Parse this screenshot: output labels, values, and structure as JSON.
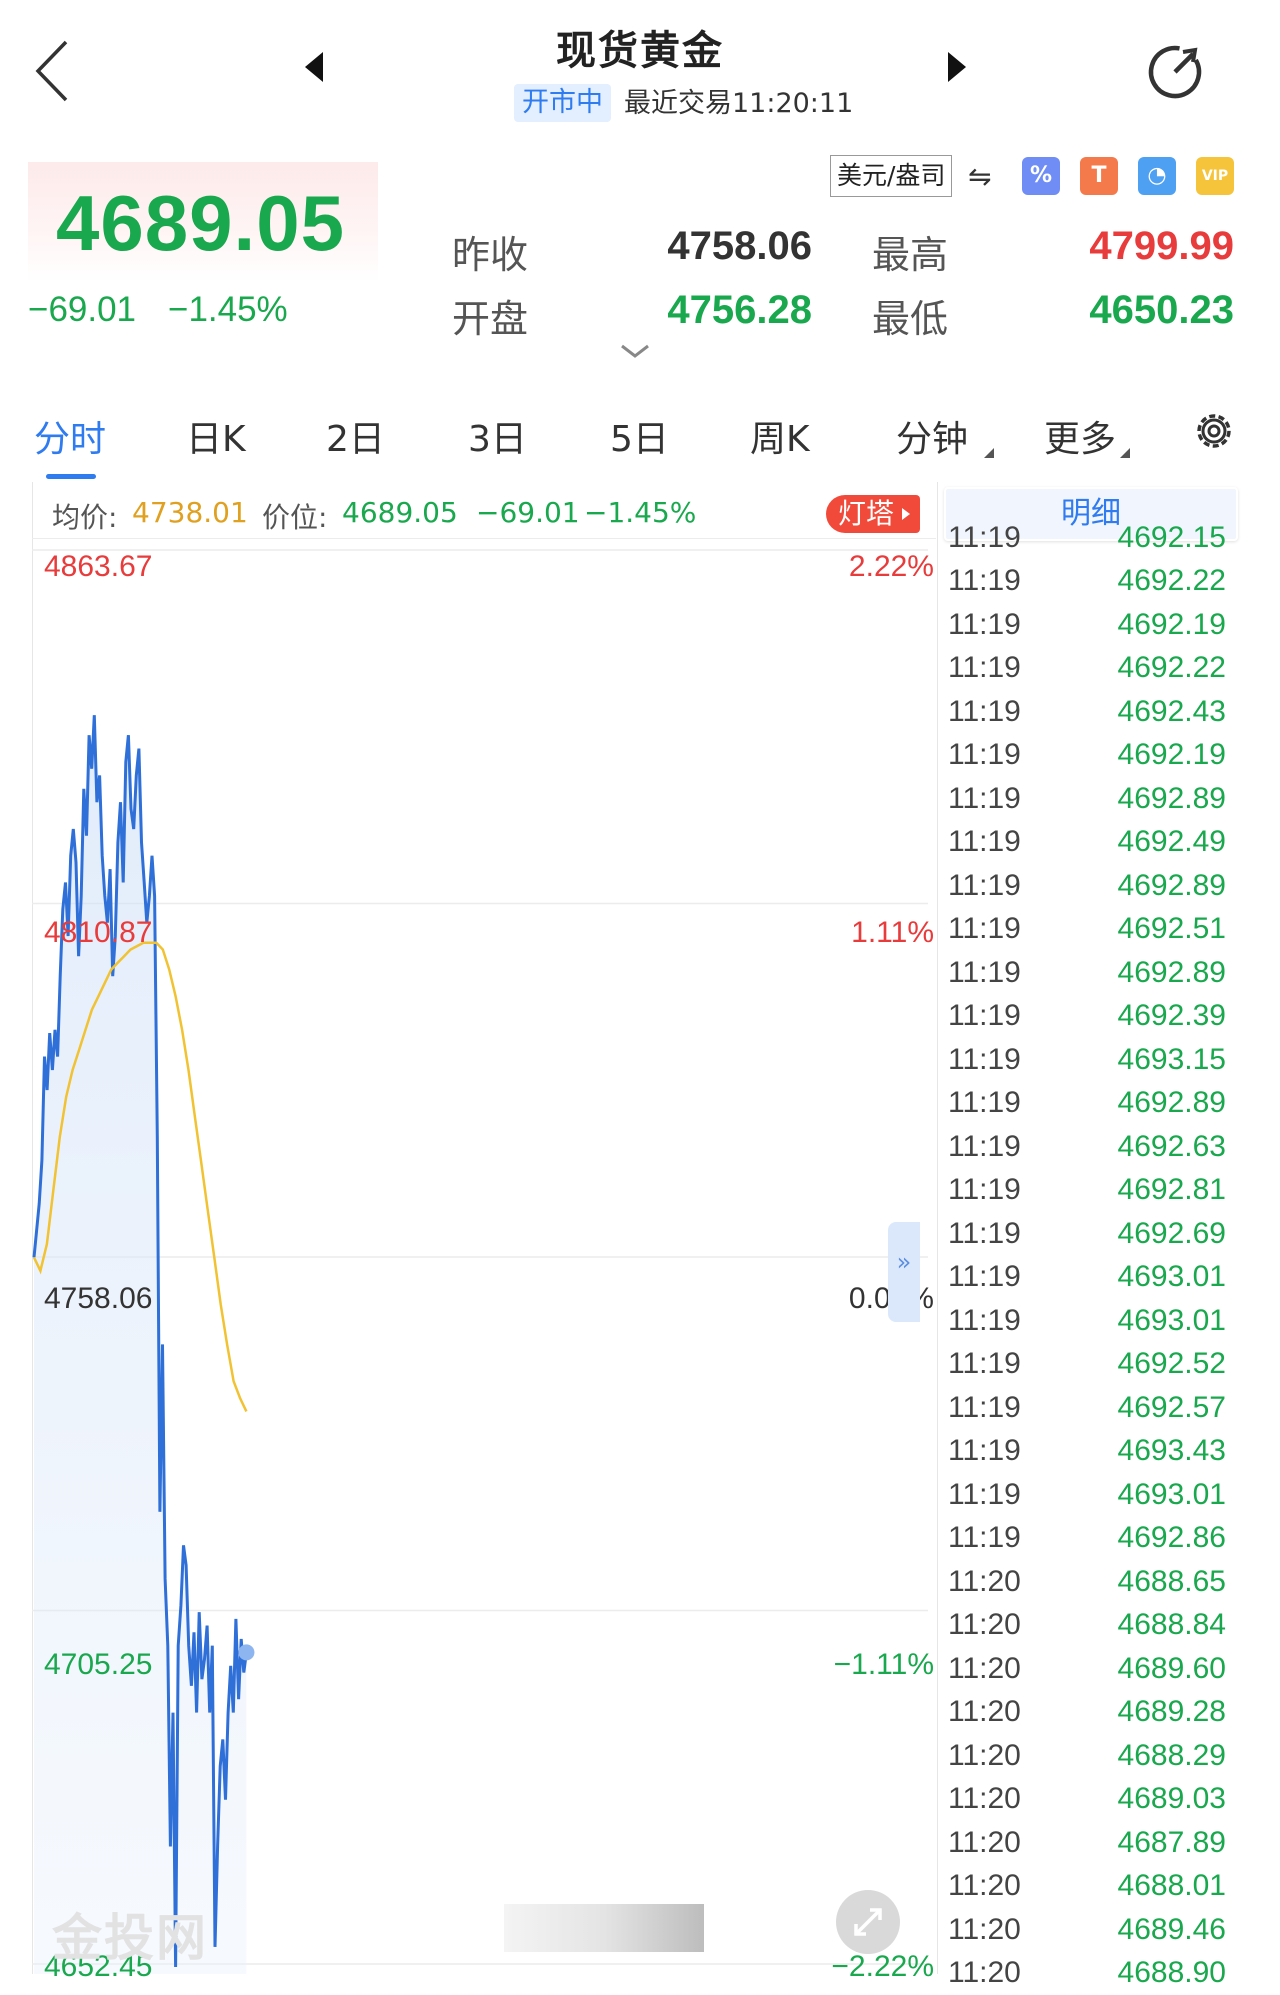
{
  "header": {
    "title": "现货黄金",
    "status": "开市中",
    "last_trade": "最近交易11:20:11"
  },
  "quote": {
    "price": "4689.05",
    "change_abs": "−69.01",
    "change_pct": "−1.45%",
    "prev_close_label": "昨收",
    "prev_close": "4758.06",
    "open_label": "开盘",
    "open": "4756.28",
    "high_label": "最高",
    "high": "4799.99",
    "low_label": "最低",
    "low": "4650.23",
    "currency": "美元/盎司",
    "colors": {
      "up": "#e83b3b",
      "down": "#1aa84e",
      "accent": "#2f7bf0"
    }
  },
  "tabs": [
    {
      "label": "分时",
      "active": true
    },
    {
      "label": "日K"
    },
    {
      "label": "2日"
    },
    {
      "label": "3日"
    },
    {
      "label": "5日"
    },
    {
      "label": "周K"
    },
    {
      "label": "分钟"
    },
    {
      "label": "更多"
    }
  ],
  "chart_info": {
    "avg_label": "均价:",
    "avg_value": "4738.01",
    "pos_label": "价位:",
    "pos_value": "4689.05",
    "pos_change": "−69.01",
    "pos_pct": "−1.45%",
    "lighthouse": "灯塔",
    "detail_tab": "明细",
    "watermark": "金投网"
  },
  "chart_data": {
    "type": "line",
    "ylim": [
      4652.45,
      4863.67
    ],
    "y_ticks_left": [
      "4863.67",
      "4810.87",
      "4758.06",
      "4705.25",
      "4652.45"
    ],
    "y_ticks_right": [
      "2.22%",
      "1.11%",
      "0.00%",
      "−1.11%",
      "−2.22%"
    ],
    "reference": 4758.06,
    "session_fraction_elapsed": 0.235,
    "series": [
      {
        "role": "price",
        "color": "#2f6fd8",
        "values": [
          4758.0,
          4762.0,
          4766.0,
          4772.5,
          4788.0,
          4783.0,
          4791.5,
          4786.0,
          4792.0,
          4788.0,
          4800.0,
          4810.0,
          4814.0,
          4806.0,
          4818.0,
          4822.0,
          4817.0,
          4803.0,
          4812.0,
          4828.0,
          4821.0,
          4836.0,
          4831.0,
          4839.0,
          4826.0,
          4830.0,
          4818.0,
          4812.0,
          4808.0,
          4816.0,
          4800.0,
          4806.0,
          4820.0,
          4826.0,
          4814.0,
          4832.0,
          4836.0,
          4825.0,
          4822.0,
          4830.0,
          4834.0,
          4820.0,
          4814.0,
          4808.0,
          4812.0,
          4818.0,
          4812.0,
          4776.0,
          4720.0,
          4745.0,
          4710.0,
          4700.0,
          4670.0,
          4690.0,
          4652.0,
          4700.0,
          4706.0,
          4715.0,
          4712.0,
          4700.0,
          4694.0,
          4702.0,
          4690.0,
          4705.0,
          4695.0,
          4698.0,
          4703.0,
          4690.0,
          4700.0,
          4655.0,
          4670.0,
          4682.0,
          4686.0,
          4677.0,
          4690.0,
          4697.0,
          4690.0,
          4704.0,
          4692.0,
          4701.0,
          4696.0,
          4699.0
        ]
      },
      {
        "role": "average",
        "color": "#f1c232",
        "values": [
          4758.0,
          4756.0,
          4760.0,
          4768.0,
          4776.0,
          4782.0,
          4786.0,
          4789.0,
          4792.0,
          4795.0,
          4797.0,
          4799.0,
          4801.0,
          4802.0,
          4803.0,
          4804.0,
          4804.5,
          4805.0,
          4805.0,
          4805.0,
          4804.0,
          4801.0,
          4797.0,
          4792.0,
          4786.0,
          4779.0,
          4772.0,
          4765.0,
          4758.0,
          4751.0,
          4745.0,
          4739.5,
          4737.0,
          4735.0
        ]
      }
    ]
  },
  "detail_rows": [
    [
      "11:19",
      "4692.15"
    ],
    [
      "11:19",
      "4692.22"
    ],
    [
      "11:19",
      "4692.19"
    ],
    [
      "11:19",
      "4692.22"
    ],
    [
      "11:19",
      "4692.43"
    ],
    [
      "11:19",
      "4692.19"
    ],
    [
      "11:19",
      "4692.89"
    ],
    [
      "11:19",
      "4692.49"
    ],
    [
      "11:19",
      "4692.89"
    ],
    [
      "11:19",
      "4692.51"
    ],
    [
      "11:19",
      "4692.89"
    ],
    [
      "11:19",
      "4692.39"
    ],
    [
      "11:19",
      "4693.15"
    ],
    [
      "11:19",
      "4692.89"
    ],
    [
      "11:19",
      "4692.63"
    ],
    [
      "11:19",
      "4692.81"
    ],
    [
      "11:19",
      "4692.69"
    ],
    [
      "11:19",
      "4693.01"
    ],
    [
      "11:19",
      "4693.01"
    ],
    [
      "11:19",
      "4692.52"
    ],
    [
      "11:19",
      "4692.57"
    ],
    [
      "11:19",
      "4693.43"
    ],
    [
      "11:19",
      "4693.01"
    ],
    [
      "11:19",
      "4692.86"
    ],
    [
      "11:20",
      "4688.65"
    ],
    [
      "11:20",
      "4688.84"
    ],
    [
      "11:20",
      "4689.60"
    ],
    [
      "11:20",
      "4689.28"
    ],
    [
      "11:20",
      "4688.29"
    ],
    [
      "11:20",
      "4689.03"
    ],
    [
      "11:20",
      "4687.89"
    ],
    [
      "11:20",
      "4688.01"
    ],
    [
      "11:20",
      "4689.46"
    ],
    [
      "11:20",
      "4688.90"
    ]
  ]
}
